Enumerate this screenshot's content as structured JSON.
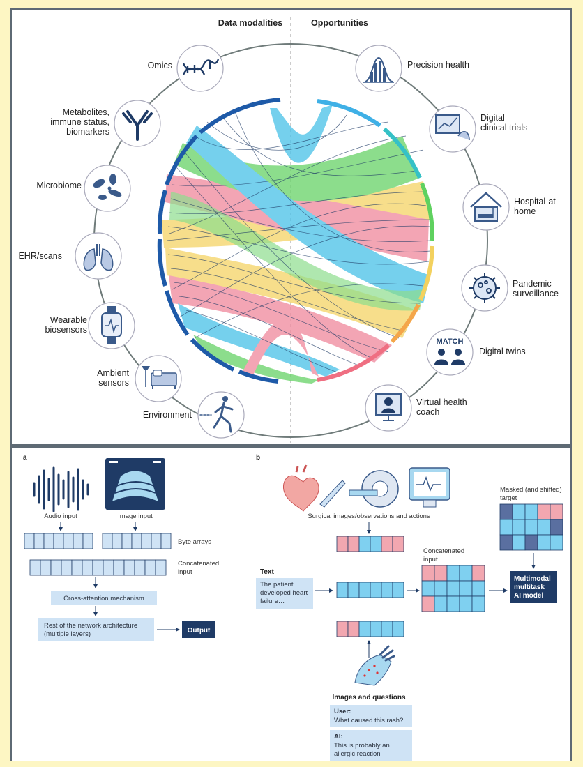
{
  "top": {
    "left_header": "Data modalities",
    "right_header": "Opportunities",
    "modalities": [
      {
        "label_lines": [
          "Omics"
        ],
        "icon": "dna-icon"
      },
      {
        "label_lines": [
          "Metabolites,",
          "immune status,",
          "biomarkers"
        ],
        "icon": "antibody-icon"
      },
      {
        "label_lines": [
          "Microbiome"
        ],
        "icon": "microbe-icon"
      },
      {
        "label_lines": [
          "EHR/scans"
        ],
        "icon": "lungs-icon"
      },
      {
        "label_lines": [
          "Wearable",
          "biosensors"
        ],
        "icon": "smartwatch-icon"
      },
      {
        "label_lines": [
          "Ambient",
          "sensors"
        ],
        "icon": "bed-lamp-icon"
      },
      {
        "label_lines": [
          "Environment"
        ],
        "icon": "runner-icon"
      }
    ],
    "opportunities": [
      {
        "label_lines": [
          "Precision health"
        ],
        "icon": "bell-curve-icon"
      },
      {
        "label_lines": [
          "Digital",
          "clinical trials"
        ],
        "icon": "monitor-hand-icon"
      },
      {
        "label_lines": [
          "Hospital-at-",
          "home"
        ],
        "icon": "house-bed-icon"
      },
      {
        "label_lines": [
          "Pandemic",
          "surveillance"
        ],
        "icon": "virus-icon"
      },
      {
        "label_lines": [
          "Digital twins"
        ],
        "icon": "twins-icon",
        "icon_text": "MATCH"
      },
      {
        "label_lines": [
          "Virtual health",
          "coach"
        ],
        "icon": "video-doctor-icon"
      }
    ]
  },
  "panel_a": {
    "letter": "a",
    "audio_label": "Audio input",
    "image_label": "Image input",
    "byte_arrays": "Byte arrays",
    "concat_label_lines": [
      "Concatenated",
      "input"
    ],
    "cross_attention": "Cross-attention mechanism",
    "rest_lines": [
      "Rest of the network architecture",
      "(multiple layers)"
    ],
    "output": "Output"
  },
  "panel_b": {
    "letter": "b",
    "surgical_caption": "Surgical images/observations and actions",
    "text_heading": "Text",
    "text_box_lines": [
      "The patient",
      "developed heart",
      "failure…"
    ],
    "concat_label_lines": [
      "Concatenated",
      "input"
    ],
    "masked_label_lines": [
      "Masked (and shifted)",
      "target"
    ],
    "model_lines": [
      "Multimodal",
      "multitask",
      "AI model"
    ],
    "images_questions": "Images and questions",
    "user_label": "User:",
    "user_text": "What caused this rash?",
    "ai_label": "AI:",
    "ai_text_lines": [
      "This is probably an",
      "allergic reaction"
    ]
  },
  "colors": {
    "navy": "#1f3b66",
    "dark_blue_arc": "#1e5aa8",
    "cyan": "#4fc3e8",
    "pink": "#f08ca0",
    "green": "#6dd46d",
    "yellow": "#f5d66b",
    "box_blue": "#cfe3f5"
  }
}
